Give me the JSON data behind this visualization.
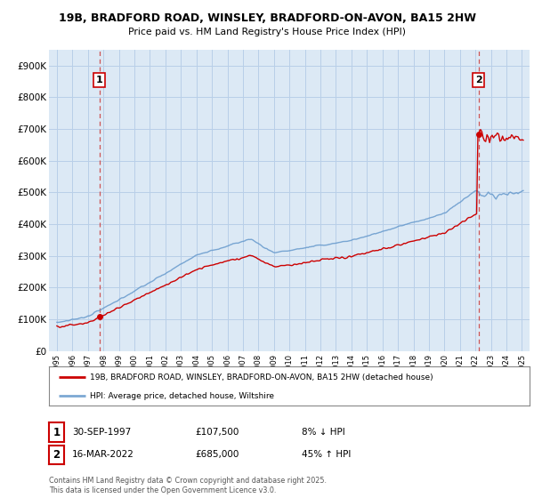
{
  "title1": "19B, BRADFORD ROAD, WINSLEY, BRADFORD-ON-AVON, BA15 2HW",
  "title2": "Price paid vs. HM Land Registry's House Price Index (HPI)",
  "ylabel_ticks": [
    "£0",
    "£100K",
    "£200K",
    "£300K",
    "£400K",
    "£500K",
    "£600K",
    "£700K",
    "£800K",
    "£900K"
  ],
  "ytick_values": [
    0,
    100000,
    200000,
    300000,
    400000,
    500000,
    600000,
    700000,
    800000,
    900000
  ],
  "xlim": [
    1994.5,
    2025.5
  ],
  "ylim": [
    0,
    950000
  ],
  "purchase1_date": 1997.75,
  "purchase1_price": 107500,
  "purchase1_label": "1",
  "purchase2_date": 2022.2,
  "purchase2_price": 685000,
  "purchase2_label": "2",
  "legend_line1": "19B, BRADFORD ROAD, WINSLEY, BRADFORD-ON-AVON, BA15 2HW (detached house)",
  "legend_line2": "HPI: Average price, detached house, Wiltshire",
  "table_row1": [
    "1",
    "30-SEP-1997",
    "£107,500",
    "8% ↓ HPI"
  ],
  "table_row2": [
    "2",
    "16-MAR-2022",
    "£685,000",
    "45% ↑ HPI"
  ],
  "footnote": "Contains HM Land Registry data © Crown copyright and database right 2025.\nThis data is licensed under the Open Government Licence v3.0.",
  "line_color_red": "#cc0000",
  "line_color_blue": "#6699cc",
  "vline_color": "#cc4444",
  "chart_bg": "#dce9f5",
  "background_color": "#ffffff",
  "grid_color": "#b8cfe8",
  "label_box_color": "#cc0000"
}
